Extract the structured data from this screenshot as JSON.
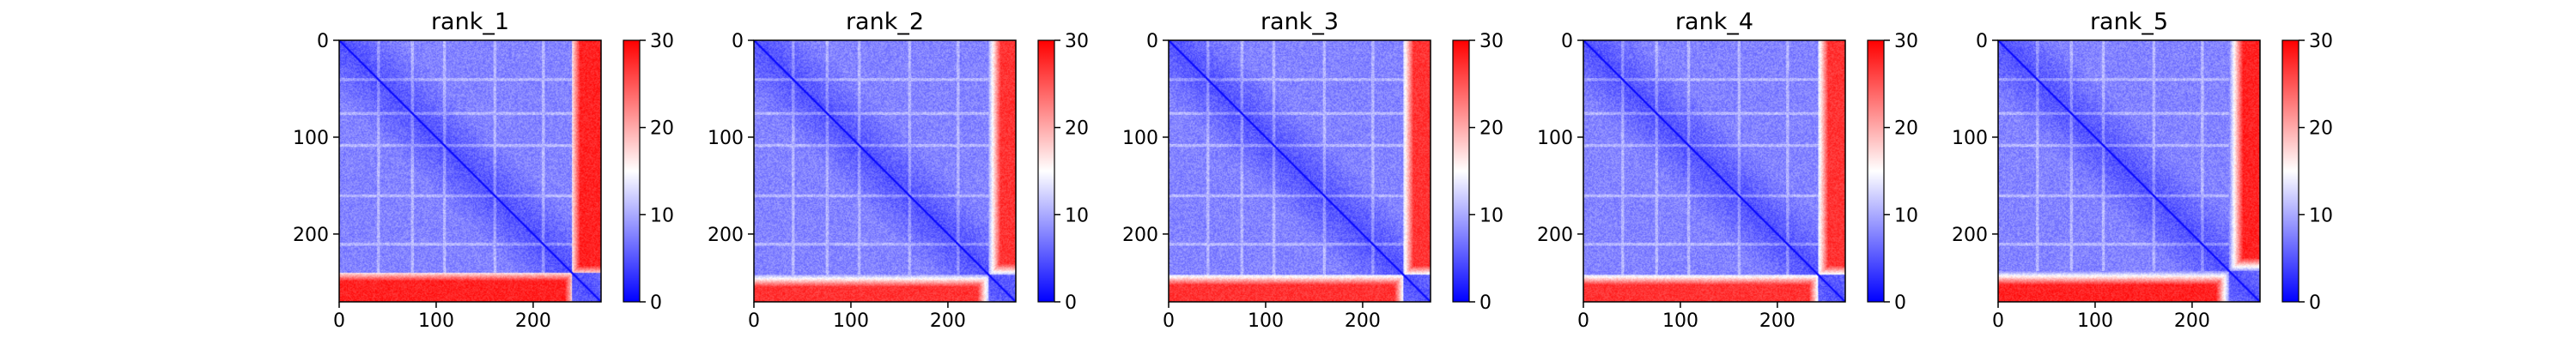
{
  "figure": {
    "background": "#ffffff"
  },
  "colormap": {
    "low_color": "#0000ff",
    "mid_color": "#ffffff",
    "high_color": "#ff0000",
    "range": [
      0,
      30
    ],
    "ticks": [
      0,
      10,
      20,
      30
    ]
  },
  "chart_data": [
    {
      "type": "heatmap",
      "title": "rank_1",
      "xlabel": "",
      "ylabel": "",
      "xlim": [
        0,
        270
      ],
      "ylim": [
        270,
        0
      ],
      "xticks": [
        0,
        100,
        200
      ],
      "yticks": [
        0,
        100,
        200
      ],
      "matrix_size": 270,
      "domain_boundary": 240,
      "domain_edge_width": 8,
      "within_domain_value": 3,
      "cross_domain_value": 28,
      "diagonal_value": 0
    },
    {
      "type": "heatmap",
      "title": "rank_2",
      "xlabel": "",
      "ylabel": "",
      "xlim": [
        0,
        270
      ],
      "ylim": [
        270,
        0
      ],
      "xticks": [
        0,
        100,
        200
      ],
      "yticks": [
        0,
        100,
        200
      ],
      "matrix_size": 270,
      "domain_boundary": 242,
      "domain_edge_width": 12,
      "within_domain_value": 3,
      "cross_domain_value": 27,
      "diagonal_value": 0
    },
    {
      "type": "heatmap",
      "title": "rank_3",
      "xlabel": "",
      "ylabel": "",
      "xlim": [
        0,
        270
      ],
      "ylim": [
        270,
        0
      ],
      "xticks": [
        0,
        100,
        200
      ],
      "yticks": [
        0,
        100,
        200
      ],
      "matrix_size": 270,
      "domain_boundary": 242,
      "domain_edge_width": 10,
      "within_domain_value": 3,
      "cross_domain_value": 27,
      "diagonal_value": 0
    },
    {
      "type": "heatmap",
      "title": "rank_4",
      "xlabel": "",
      "ylabel": "",
      "xlim": [
        0,
        270
      ],
      "ylim": [
        270,
        0
      ],
      "xticks": [
        0,
        100,
        200
      ],
      "yticks": [
        0,
        100,
        200
      ],
      "matrix_size": 270,
      "domain_boundary": 242,
      "domain_edge_width": 10,
      "within_domain_value": 3,
      "cross_domain_value": 27,
      "diagonal_value": 0
    },
    {
      "type": "heatmap",
      "title": "rank_5",
      "xlabel": "",
      "ylabel": "",
      "xlim": [
        0,
        270
      ],
      "ylim": [
        270,
        0
      ],
      "xticks": [
        0,
        100,
        200
      ],
      "yticks": [
        0,
        100,
        200
      ],
      "matrix_size": 270,
      "domain_boundary": 238,
      "domain_edge_width": 14,
      "within_domain_value": 3,
      "cross_domain_value": 28,
      "diagonal_value": 0
    }
  ]
}
